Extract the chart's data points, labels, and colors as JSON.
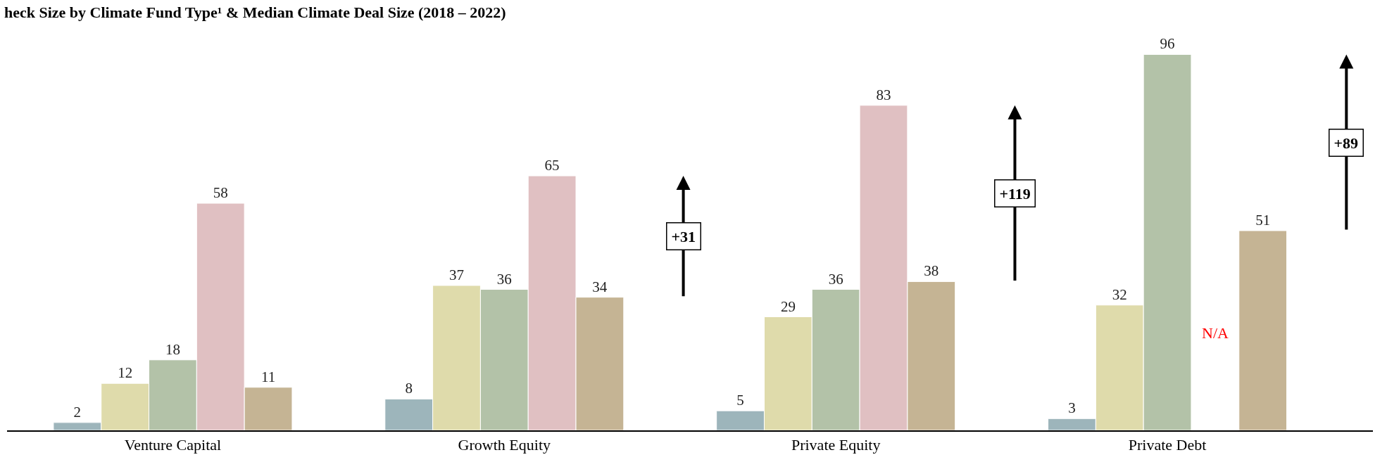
{
  "chart_data": {
    "type": "bar",
    "title": "heck Size by Climate Fund Type¹ & Median Climate Deal Size (2018 – 2022)",
    "categories": [
      "Venture Capital",
      "Growth Equity",
      "Private Equity",
      "Private Debt"
    ],
    "series": [
      {
        "color": "#9db5bb",
        "values": [
          2,
          8,
          5,
          3
        ]
      },
      {
        "color": "#dfdbab",
        "values": [
          12,
          37,
          29,
          32
        ]
      },
      {
        "color": "#b3c2a8",
        "values": [
          18,
          36,
          36,
          96
        ]
      },
      {
        "color": "#e0c0c2",
        "values": [
          58,
          65,
          83,
          null
        ]
      },
      {
        "color": "#c5b494",
        "values": [
          11,
          34,
          38,
          51
        ]
      }
    ],
    "data_labels": true,
    "annotations": [
      "+31",
      "+119",
      "+89",
      "N/A"
    ]
  }
}
